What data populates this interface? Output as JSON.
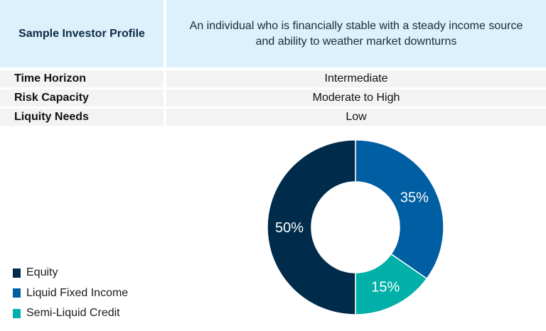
{
  "table": {
    "header_label": "Sample Investor Profile",
    "header_value": "An individual who is financially stable with a steady income source and ability to weather market downturns",
    "rows": [
      {
        "label": "Time Horizon",
        "value": "Intermediate"
      },
      {
        "label": "Risk Capacity",
        "value": "Moderate to High"
      },
      {
        "label": "Liquity Needs",
        "value": "Low"
      }
    ]
  },
  "chart_data": {
    "type": "pie",
    "variant": "donut",
    "categories": [
      "Equity",
      "Liquid Fixed Income",
      "Semi-Liquid Credit"
    ],
    "values": [
      50,
      35,
      15
    ],
    "labels": [
      "50%",
      "35%",
      "15%"
    ],
    "colors": [
      "#002b4b",
      "#005ea2",
      "#00b0a9"
    ],
    "legend_position": "bottom-left"
  }
}
